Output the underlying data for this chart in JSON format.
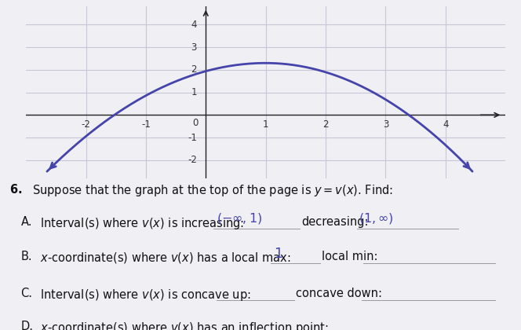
{
  "bg_color": "#f0eff4",
  "graph_bg": "#e0dfe8",
  "curve_color": "#4444aa",
  "axis_color": "#222222",
  "grid_color": "#c8c7d8",
  "xlim": [
    -3.0,
    5.0
  ],
  "ylim": [
    -2.8,
    4.8
  ],
  "xticks": [
    -2,
    -1,
    0,
    1,
    2,
    3,
    4
  ],
  "yticks": [
    -2,
    -1,
    1,
    2,
    3,
    4
  ],
  "curve_x_start": -2.65,
  "curve_x_end": 4.45,
  "curve_peak_x": 1.0,
  "curve_peak_y": 2.3,
  "font_size_main": 10.5,
  "font_size_answer": 11.5,
  "text_color": "#111111",
  "hand_color": "#4444aa",
  "line_color": "#999999"
}
